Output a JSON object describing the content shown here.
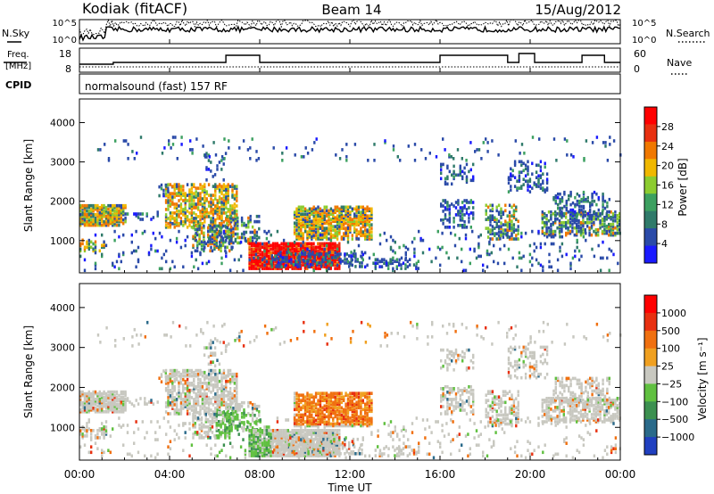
{
  "header": {
    "site": "Kodiak (fitACF)",
    "beam": "Beam 14",
    "date": "15/Aug/2012"
  },
  "panels": {
    "nsky_label": "N.Sky",
    "nsearch_label": "N.Search",
    "noise_ticks": [
      "10^5",
      "10^0"
    ],
    "freq_label_top": "Freq.",
    "freq_label_bottom": "[MHz]",
    "freq_ticks": [
      "18",
      "8"
    ],
    "nave_label": "Nave",
    "nave_ticks": [
      "60",
      "0"
    ],
    "cpid_label": "CPID",
    "cpid_text": "normalsound (fast) 157 RF"
  },
  "chart_data": [
    {
      "type": "heatmap",
      "name": "power",
      "ylabel": "Slant Range [km]",
      "yticks": [
        "4000",
        "3000",
        "2000",
        "1000"
      ],
      "ytick_values": [
        4000,
        3000,
        2000,
        1000
      ],
      "ylim": [
        180,
        4600
      ],
      "xlim": [
        0,
        24
      ],
      "colorbar_label": "Power [dB]",
      "colorbar_ticks": [
        "28",
        "24",
        "20",
        "16",
        "12",
        "8",
        "4"
      ],
      "colorbar_values": [
        28,
        24,
        20,
        16,
        12,
        8,
        4
      ],
      "colorbar_range": [
        0,
        32
      ],
      "colors": [
        "#1a1aff",
        "#2a4aa8",
        "#2f7a6a",
        "#3ca060",
        "#8ccc30",
        "#f0b800",
        "#f07800",
        "#e83010",
        "#ff0000"
      ]
    },
    {
      "type": "heatmap",
      "name": "velocity",
      "ylabel": "Slant Range [km]",
      "yticks": [
        "4000",
        "3000",
        "2000",
        "1000"
      ],
      "ytick_values": [
        4000,
        3000,
        2000,
        1000
      ],
      "ylim": [
        180,
        4600
      ],
      "xlim": [
        0,
        24
      ],
      "colorbar_label": "Velocity [m s⁻¹]",
      "colorbar_ticks": [
        "1000",
        "500",
        "100",
        "25",
        "−25",
        "−100",
        "−500",
        "−1000"
      ],
      "colors": [
        "#2040c0",
        "#2a6a8a",
        "#3c9050",
        "#60c040",
        "#c8c8c0",
        "#f0a020",
        "#f07010",
        "#e83010",
        "#ff0000"
      ]
    }
  ],
  "time_axis": {
    "xlabel": "Time UT",
    "ticks": [
      "00:00",
      "04:00",
      "08:00",
      "12:00",
      "16:00",
      "20:00",
      "00:00"
    ],
    "tick_values": [
      0,
      4,
      8,
      12,
      16,
      20,
      24
    ]
  }
}
